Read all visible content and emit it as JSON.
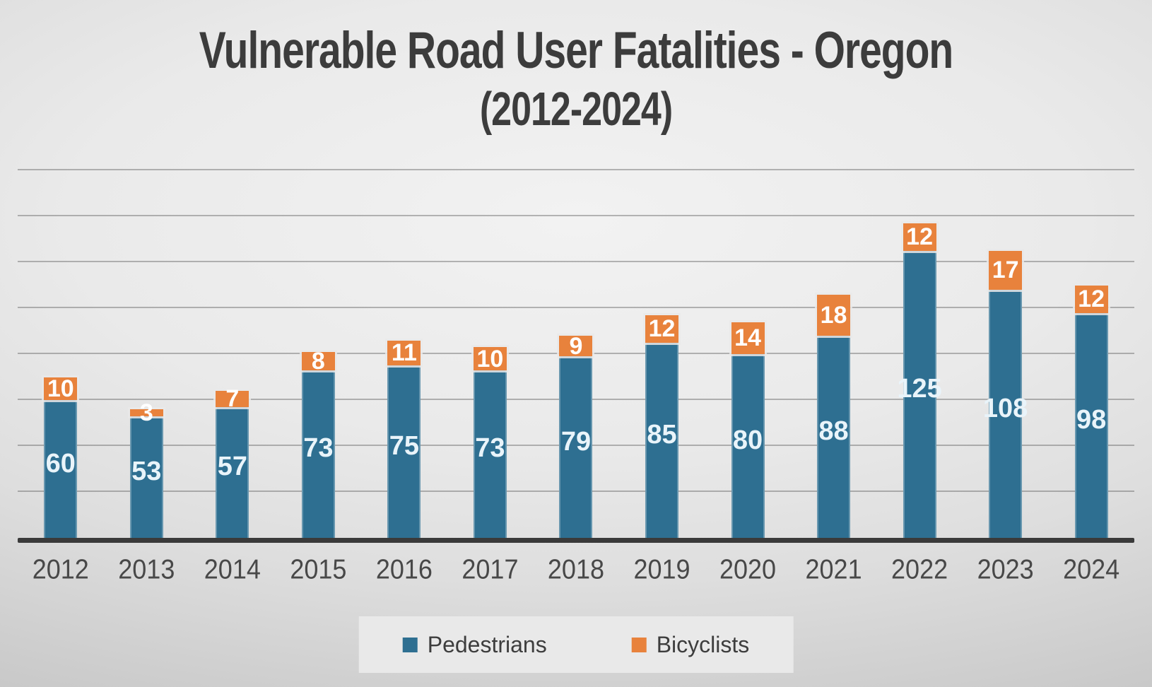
{
  "slide": {
    "title": "Vulnerable Road User Fatalities - Oregon",
    "subtitle": "(2012-2024)"
  },
  "colors": {
    "pedestrians": "#2e6f91",
    "bicyclists": "#e8823c",
    "pedestrians_label_text": "#e9f4fa",
    "bicyclists_label_text": "#ffffff",
    "title_text": "#3c3c3c",
    "axis_line": "#3a3a3a",
    "gridline": "#5a5a5a",
    "x_label_text": "#484848",
    "legend_background": "#e9e9e9",
    "legend_text": "#3d3d3d"
  },
  "legend": {
    "items": [
      {
        "label": "Pedestrians",
        "series_index": 0
      },
      {
        "label": "Bicyclists",
        "series_index": 1
      }
    ]
  },
  "chart_data": {
    "type": "bar",
    "stacked": true,
    "title": "Vulnerable Road User Fatalities - Oregon",
    "subtitle": "(2012-2024)",
    "categories": [
      "2012",
      "2013",
      "2014",
      "2015",
      "2016",
      "2017",
      "2018",
      "2019",
      "2020",
      "2021",
      "2022",
      "2023",
      "2024"
    ],
    "series": [
      {
        "name": "Pedestrians",
        "color": "#2e6f91",
        "values": [
          60,
          53,
          57,
          73,
          75,
          73,
          79,
          85,
          80,
          88,
          125,
          108,
          98
        ]
      },
      {
        "name": "Bicyclists",
        "color": "#e8823c",
        "values": [
          10,
          3,
          7,
          8,
          11,
          10,
          9,
          12,
          14,
          18,
          12,
          17,
          12
        ]
      }
    ],
    "xlabel": "",
    "ylabel": "",
    "ylim": [
      0,
      160
    ],
    "gridline_step": 20,
    "grid": true,
    "y_tick_labels_visible": false,
    "data_labels": "inside",
    "legend_position": "bottom"
  }
}
